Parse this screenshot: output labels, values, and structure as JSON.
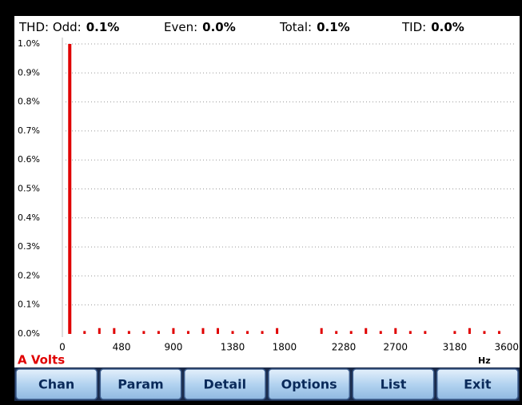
{
  "header": {
    "items": [
      {
        "label": "THD: Odd:",
        "value": "0.1%"
      },
      {
        "label": "Even:",
        "value": "0.0%"
      },
      {
        "label": "Total:",
        "value": "0.1%"
      },
      {
        "label": "TID:",
        "value": "0.0%"
      }
    ]
  },
  "chart_data": {
    "type": "bar",
    "x": [
      60,
      180,
      300,
      420,
      540,
      660,
      780,
      900,
      1020,
      1140,
      1260,
      1380,
      1500,
      1620,
      1740,
      2100,
      2220,
      2340,
      2460,
      2580,
      2700,
      2820,
      2940,
      3180,
      3300,
      3420,
      3540
    ],
    "values": [
      1.0,
      0.01,
      0.02,
      0.02,
      0.01,
      0.01,
      0.01,
      0.02,
      0.01,
      0.02,
      0.02,
      0.01,
      0.01,
      0.01,
      0.02,
      0.02,
      0.01,
      0.01,
      0.02,
      0.01,
      0.02,
      0.01,
      0.01,
      0.01,
      0.02,
      0.01,
      0.01
    ],
    "color": "#e00000",
    "xlim": [
      0,
      3660
    ],
    "xticks": [
      0,
      480,
      900,
      1380,
      1800,
      2280,
      2700,
      3180,
      3600
    ],
    "ylim": [
      0,
      1
    ],
    "yticks": [
      {
        "value": 0,
        "label": "0.0%"
      },
      {
        "value": 0.1,
        "label": "0.1%"
      },
      {
        "value": 0.2,
        "label": "0.2%"
      },
      {
        "value": 0.3,
        "label": "0.3%"
      },
      {
        "value": 0.4,
        "label": "0.4%"
      },
      {
        "value": 0.5,
        "label": "0.5%"
      },
      {
        "value": 0.6,
        "label": "0.6%"
      },
      {
        "value": 0.7,
        "label": "0.7%"
      },
      {
        "value": 0.8,
        "label": "0.8%"
      },
      {
        "value": 0.9,
        "label": "0.9%"
      },
      {
        "value": 1,
        "label": "1.0%"
      }
    ],
    "grid": true,
    "channel_label": "A Volts",
    "x_unit": "Hz"
  },
  "buttons": [
    "Chan",
    "Param",
    "Detail",
    "Options",
    "List",
    "Exit"
  ]
}
